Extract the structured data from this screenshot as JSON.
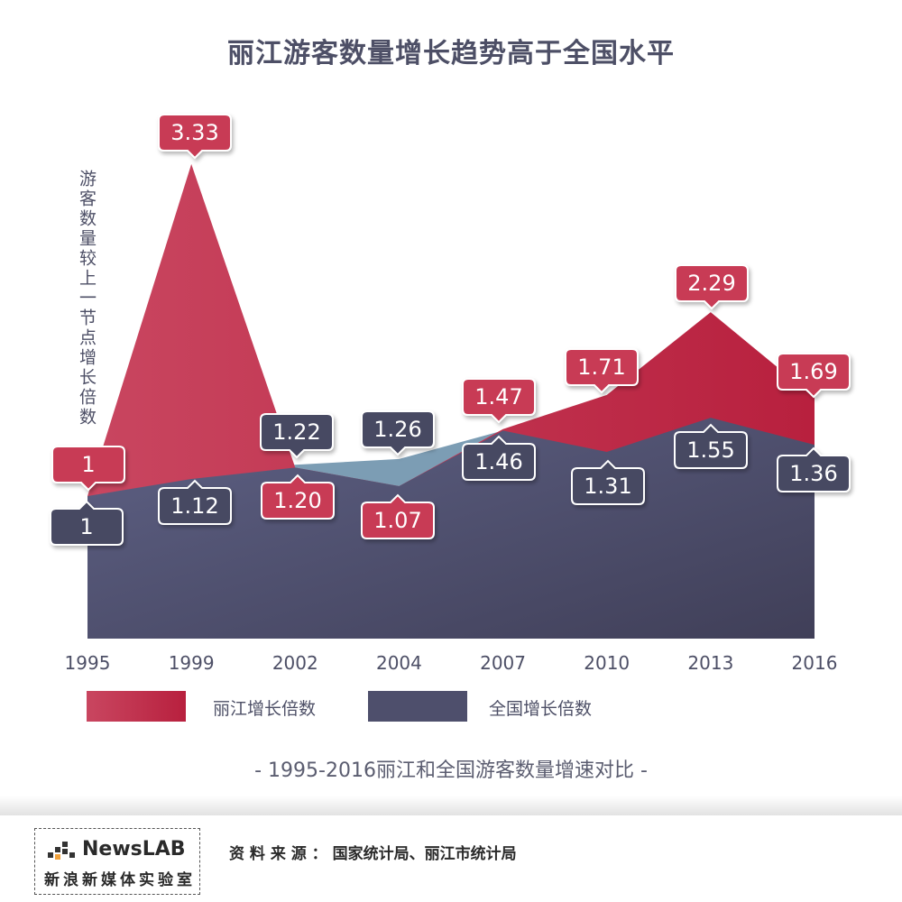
{
  "title": "丽江游客数量增长趋势高于全国水平",
  "caption": "- 1995-2016丽江和全国游客数量增速对比 -",
  "colors": {
    "lijiang": "#c2334f",
    "lijiang_label": "#c83a55",
    "national": "#4e4f6c",
    "national_label": "#464962",
    "light_gap": "#7c9db4"
  },
  "chart_data": {
    "type": "area",
    "title": "丽江游客数量增长趋势高于全国水平",
    "xlabel": "",
    "ylabel": "游客数量较上一节点增长倍数",
    "categories": [
      "1995",
      "1999",
      "2002",
      "2004",
      "2007",
      "2010",
      "2013",
      "2016"
    ],
    "series": [
      {
        "name": "丽江增长倍数",
        "values": [
          1,
          3.33,
          1.2,
          1.07,
          1.47,
          1.71,
          2.29,
          1.69
        ]
      },
      {
        "name": "全国增长倍数",
        "values": [
          1,
          1.12,
          1.22,
          1.26,
          1.46,
          1.31,
          1.55,
          1.36
        ]
      }
    ],
    "data_labels": {
      "lijiang": [
        "1",
        "3.33",
        "1.20",
        "1.07",
        "1.47",
        "1.71",
        "2.29",
        "1.69"
      ],
      "national": [
        "1",
        "1.12",
        "1.22",
        "1.26",
        "1.46",
        "1.31",
        "1.55",
        "1.36"
      ]
    },
    "legend": "bottom",
    "grid": false
  },
  "legend": {
    "lijiang": "丽江增长倍数",
    "national": "全国增长倍数"
  },
  "footer": {
    "logo_brand": "NewsLAB",
    "logo_sub": "新浪新媒体实验室",
    "source": "资 料 来 源 ： 国家统计局、丽江市统计局"
  }
}
